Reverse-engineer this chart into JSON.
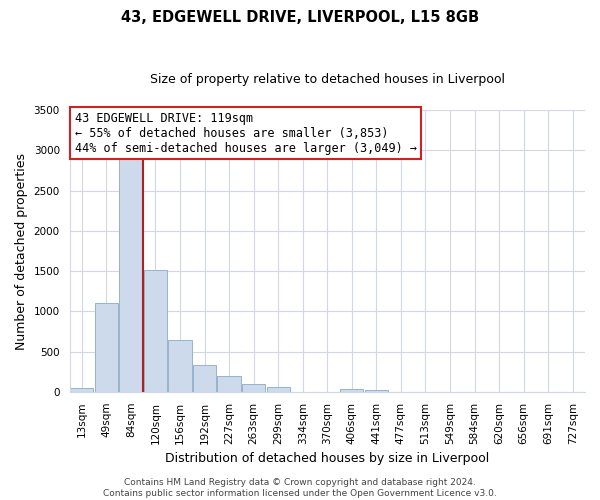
{
  "title": "43, EDGEWELL DRIVE, LIVERPOOL, L15 8GB",
  "subtitle": "Size of property relative to detached houses in Liverpool",
  "xlabel": "Distribution of detached houses by size in Liverpool",
  "ylabel": "Number of detached properties",
  "bar_labels": [
    "13sqm",
    "49sqm",
    "84sqm",
    "120sqm",
    "156sqm",
    "192sqm",
    "227sqm",
    "263sqm",
    "299sqm",
    "334sqm",
    "370sqm",
    "406sqm",
    "441sqm",
    "477sqm",
    "513sqm",
    "549sqm",
    "584sqm",
    "620sqm",
    "656sqm",
    "691sqm",
    "727sqm"
  ],
  "bar_heights": [
    45,
    1110,
    2920,
    1510,
    640,
    330,
    200,
    100,
    65,
    0,
    0,
    40,
    25,
    0,
    0,
    0,
    0,
    0,
    0,
    0,
    0
  ],
  "bar_color": "#ccdaeb",
  "bar_edge_color": "#97b3ce",
  "red_line_bar_index": 2,
  "marker_color": "#aa2222",
  "ylim": [
    0,
    3500
  ],
  "yticks": [
    0,
    500,
    1000,
    1500,
    2000,
    2500,
    3000,
    3500
  ],
  "annotation_line1": "43 EDGEWELL DRIVE: 119sqm",
  "annotation_line2": "← 55% of detached houses are smaller (3,853)",
  "annotation_line3": "44% of semi-detached houses are larger (3,049) →",
  "ann_border_color": "#cc2222",
  "footer_line1": "Contains HM Land Registry data © Crown copyright and database right 2024.",
  "footer_line2": "Contains public sector information licensed under the Open Government Licence v3.0.",
  "grid_color": "#d0d8e4",
  "background_color": "#ffffff",
  "title_fontsize": 10.5,
  "subtitle_fontsize": 9,
  "ylabel_fontsize": 9,
  "xlabel_fontsize": 9,
  "tick_fontsize": 7.5,
  "ann_fontsize": 8.5,
  "footer_fontsize": 6.5
}
